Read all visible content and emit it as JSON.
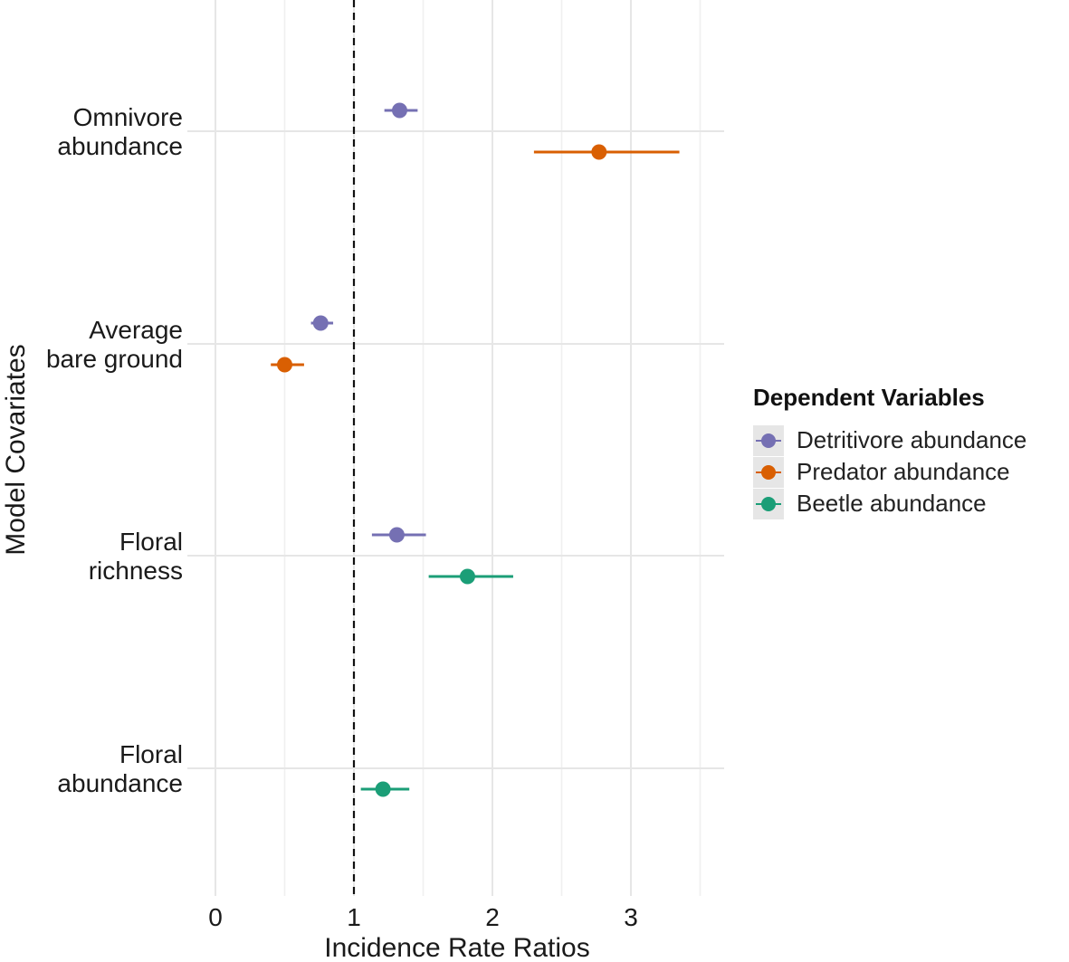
{
  "chart_data": {
    "type": "dot-whisker",
    "title": "",
    "xlabel": "Incidence Rate Ratios",
    "ylabel": "Model Covariates",
    "xlim": [
      -0.2,
      3.65
    ],
    "xticks": [
      0,
      1,
      2,
      3
    ],
    "xtick_labels": [
      "0",
      "1",
      "2",
      "3"
    ],
    "reference_line_x": 1,
    "grid": true,
    "legend_position": "right",
    "legend_title": "Dependent Variables",
    "categories": [
      {
        "id": "omnivore",
        "label_lines": [
          "Omnivore",
          "abundance"
        ]
      },
      {
        "id": "bare",
        "label_lines": [
          "Average",
          "bare ground"
        ]
      },
      {
        "id": "floralrich",
        "label_lines": [
          "Floral",
          "richness"
        ]
      },
      {
        "id": "floralabund",
        "label_lines": [
          "Floral",
          "abundance"
        ]
      }
    ],
    "series": [
      {
        "name": "Detritivore abundance",
        "color": "#7570b3",
        "offset": -1,
        "points": [
          {
            "category": "omnivore",
            "estimate": 1.33,
            "low": 1.22,
            "high": 1.46
          },
          {
            "category": "bare",
            "estimate": 0.76,
            "low": 0.69,
            "high": 0.85
          },
          {
            "category": "floralrich",
            "estimate": 1.31,
            "low": 1.13,
            "high": 1.52
          }
        ]
      },
      {
        "name": "Predator abundance",
        "color": "#d95f02",
        "offset": 1,
        "points": [
          {
            "category": "omnivore",
            "estimate": 2.77,
            "low": 2.3,
            "high": 3.35
          },
          {
            "category": "bare",
            "estimate": 0.5,
            "low": 0.4,
            "high": 0.64
          }
        ]
      },
      {
        "name": "Beetle abundance",
        "color": "#1b9e77",
        "offset": 1,
        "points": [
          {
            "category": "floralrich",
            "estimate": 1.82,
            "low": 1.54,
            "high": 2.15
          },
          {
            "category": "floralabund",
            "estimate": 1.21,
            "low": 1.05,
            "high": 1.4
          }
        ]
      }
    ]
  }
}
